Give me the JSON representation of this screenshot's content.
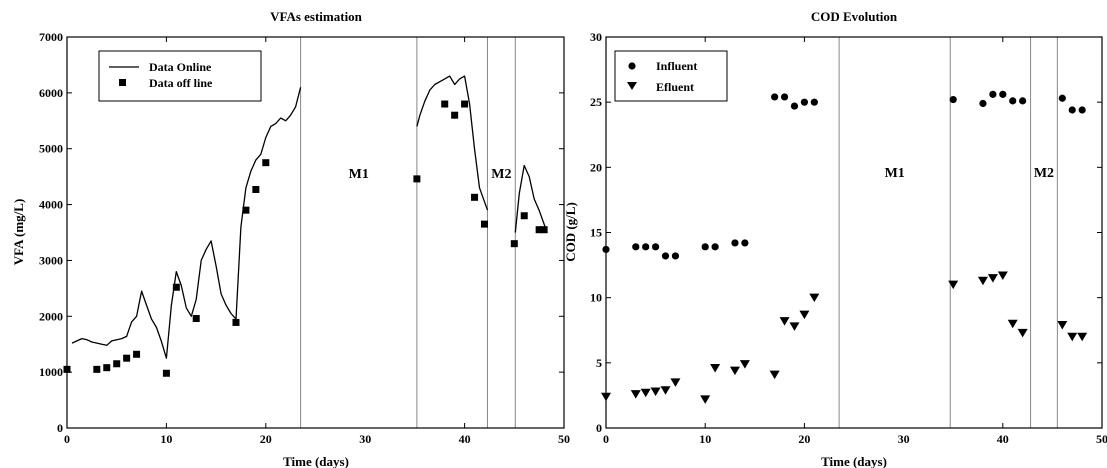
{
  "chart_data": [
    {
      "type": "line",
      "title": "VFAs estimation",
      "xlabel": "Time (days)",
      "ylabel": "VFA  (mg/L)",
      "xlim": [
        0,
        50
      ],
      "ylim": [
        0,
        7000
      ],
      "xticks": [
        "0",
        "10",
        "20",
        "30",
        "40",
        "50"
      ],
      "yticks": [
        "0",
        "1000",
        "2000",
        "3000",
        "4000",
        "5000",
        "6000",
        "7000"
      ],
      "legend": "top-left",
      "regions": [
        {
          "label": "M1",
          "start": 23.5,
          "end": 35.2
        },
        {
          "label": "M2",
          "start": 42.3,
          "end": 45.1
        }
      ],
      "series": [
        {
          "name": "Data Online",
          "style": "line",
          "color": "#000000",
          "segments": [
            [
              [
                0.5,
                1520
              ],
              [
                1,
                1560
              ],
              [
                1.5,
                1600
              ],
              [
                2,
                1580
              ],
              [
                2.5,
                1540
              ],
              [
                3,
                1520
              ],
              [
                3.5,
                1500
              ],
              [
                4,
                1480
              ],
              [
                4.5,
                1560
              ],
              [
                5,
                1580
              ],
              [
                5.5,
                1600
              ],
              [
                6,
                1640
              ],
              [
                6.5,
                1900
              ],
              [
                7,
                2000
              ],
              [
                7.5,
                2450
              ],
              [
                8,
                2200
              ],
              [
                8.5,
                1950
              ],
              [
                9,
                1800
              ],
              [
                9.5,
                1550
              ],
              [
                10,
                1250
              ],
              [
                10.5,
                2200
              ],
              [
                11,
                2800
              ],
              [
                11.5,
                2550
              ],
              [
                12,
                2150
              ],
              [
                12.5,
                2000
              ],
              [
                13,
                2300
              ],
              [
                13.5,
                3000
              ],
              [
                14,
                3200
              ],
              [
                14.5,
                3350
              ],
              [
                15,
                2900
              ],
              [
                15.5,
                2400
              ],
              [
                16,
                2200
              ],
              [
                16.5,
                2050
              ],
              [
                17,
                1950
              ],
              [
                17.5,
                3600
              ],
              [
                18,
                4300
              ],
              [
                18.5,
                4600
              ],
              [
                19,
                4800
              ],
              [
                19.5,
                4900
              ],
              [
                20,
                5200
              ],
              [
                20.5,
                5400
              ],
              [
                21,
                5450
              ],
              [
                21.5,
                5550
              ],
              [
                22,
                5500
              ],
              [
                22.5,
                5600
              ],
              [
                23,
                5750
              ],
              [
                23.5,
                6100
              ]
            ],
            [
              [
                35.2,
                5400
              ],
              [
                35.5,
                5600
              ],
              [
                36,
                5850
              ],
              [
                36.5,
                6050
              ],
              [
                37,
                6150
              ],
              [
                37.5,
                6200
              ],
              [
                38,
                6250
              ],
              [
                38.5,
                6300
              ],
              [
                39,
                6150
              ],
              [
                39.5,
                6250
              ],
              [
                40,
                6300
              ],
              [
                40.5,
                5800
              ],
              [
                41,
                5000
              ],
              [
                41.5,
                4300
              ],
              [
                42,
                4050
              ],
              [
                42.3,
                3900
              ]
            ],
            [
              [
                45.1,
                3500
              ],
              [
                45.5,
                4200
              ],
              [
                46,
                4700
              ],
              [
                46.5,
                4500
              ],
              [
                47,
                4100
              ],
              [
                47.5,
                3900
              ],
              [
                48,
                3650
              ],
              [
                48.3,
                3500
              ]
            ]
          ]
        },
        {
          "name": "Data off line",
          "style": "square",
          "color": "#000000",
          "points": [
            [
              0,
              1050
            ],
            [
              3,
              1050
            ],
            [
              4,
              1080
            ],
            [
              5,
              1150
            ],
            [
              6,
              1250
            ],
            [
              7,
              1320
            ],
            [
              10,
              980
            ],
            [
              11,
              2520
            ],
            [
              13,
              1960
            ],
            [
              17,
              1890
            ],
            [
              18,
              3900
            ],
            [
              19,
              4270
            ],
            [
              20,
              4750
            ],
            [
              35.2,
              4460
            ],
            [
              38,
              5800
            ],
            [
              39,
              5600
            ],
            [
              40,
              5800
            ],
            [
              41,
              4130
            ],
            [
              42,
              3650
            ],
            [
              45,
              3300
            ],
            [
              46,
              3800
            ],
            [
              47.5,
              3550
            ],
            [
              48,
              3550
            ]
          ]
        }
      ]
    },
    {
      "type": "scatter",
      "title": "COD Evolution",
      "xlabel": "Time (days)",
      "ylabel": "COD (g/L)",
      "xlim": [
        0,
        50
      ],
      "ylim": [
        0,
        30
      ],
      "xticks": [
        "0",
        "10",
        "20",
        "30",
        "40",
        "50"
      ],
      "yticks": [
        "0",
        "5",
        "10",
        "15",
        "20",
        "25",
        "30"
      ],
      "legend": "top-left",
      "regions": [
        {
          "label": "M1",
          "start": 23.5,
          "end": 34.7
        },
        {
          "label": "M2",
          "start": 42.8,
          "end": 45.5
        }
      ],
      "series": [
        {
          "name": "Influent",
          "style": "circle",
          "color": "#000000",
          "points": [
            [
              0,
              13.7
            ],
            [
              3,
              13.9
            ],
            [
              4,
              13.9
            ],
            [
              5,
              13.9
            ],
            [
              6,
              13.2
            ],
            [
              7,
              13.2
            ],
            [
              10,
              13.9
            ],
            [
              11,
              13.9
            ],
            [
              13,
              14.2
            ],
            [
              14,
              14.2
            ],
            [
              17,
              25.4
            ],
            [
              18,
              25.4
            ],
            [
              19,
              24.7
            ],
            [
              20,
              25.0
            ],
            [
              21,
              25.0
            ],
            [
              35,
              25.2
            ],
            [
              38,
              24.9
            ],
            [
              39,
              25.6
            ],
            [
              40,
              25.6
            ],
            [
              41,
              25.1
            ],
            [
              42,
              25.1
            ],
            [
              46,
              25.3
            ],
            [
              47,
              24.4
            ],
            [
              48,
              24.4
            ]
          ]
        },
        {
          "name": "Efluent",
          "style": "triangle",
          "color": "#000000",
          "points": [
            [
              0,
              2.4
            ],
            [
              3,
              2.6
            ],
            [
              4,
              2.7
            ],
            [
              5,
              2.8
            ],
            [
              6,
              2.9
            ],
            [
              7,
              3.5
            ],
            [
              10,
              2.2
            ],
            [
              11,
              4.6
            ],
            [
              13,
              4.4
            ],
            [
              14,
              4.9
            ],
            [
              17,
              4.1
            ],
            [
              18,
              8.2
            ],
            [
              19,
              7.8
            ],
            [
              20,
              8.7
            ],
            [
              21,
              10.0
            ],
            [
              35,
              11.0
            ],
            [
              38,
              11.3
            ],
            [
              39,
              11.5
            ],
            [
              40,
              11.7
            ],
            [
              41,
              8.0
            ],
            [
              42,
              7.3
            ],
            [
              46,
              7.9
            ],
            [
              47,
              7.0
            ],
            [
              48,
              7.0
            ]
          ]
        }
      ]
    }
  ]
}
